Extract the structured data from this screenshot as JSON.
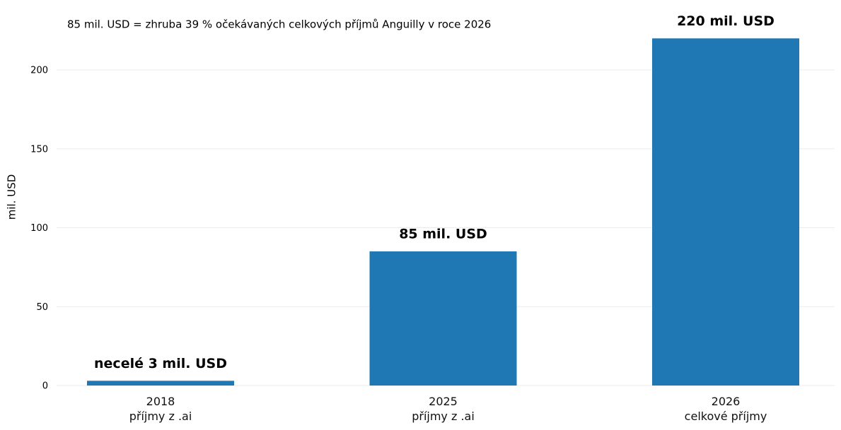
{
  "chart_data": {
    "type": "bar",
    "annotation": "85 mil. USD = zhruba 39 % očekávaných celkových příjmů Anguilly v roce 2026",
    "ylabel": "mil. USD",
    "categories": [
      "2018\npříjmy z .ai",
      "2025\npříjmy z .ai",
      "2026\ncelkové příjmy"
    ],
    "values": [
      3,
      85,
      220
    ],
    "value_labels": [
      "necelé 3 mil. USD",
      "85 mil. USD",
      "220 mil. USD"
    ],
    "color": "#1f77b4",
    "ylim": [
      0,
      230
    ],
    "yticks": [
      0,
      50,
      100,
      150,
      200
    ],
    "grid": true
  }
}
